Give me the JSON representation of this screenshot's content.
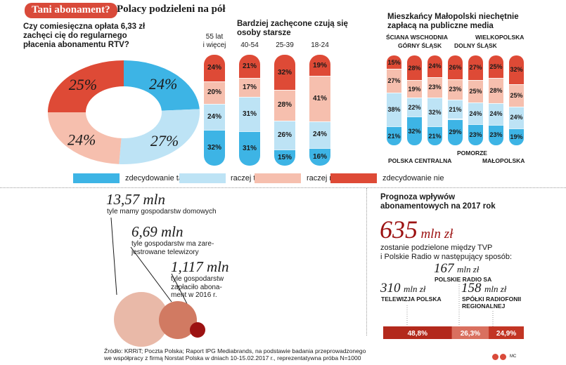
{
  "header": {
    "badge": "Tani abonament?",
    "title": "Polacy podzieleni na pół"
  },
  "colors": {
    "tak": "#3db4e5",
    "raczej_tak": "#bde3f5",
    "raczej_nie": "#f6bfae",
    "nie": "#de4a36",
    "dark_red": "#9c1212",
    "bubble1": "#e9b9a8",
    "bubble2": "#d17a62",
    "bubble3": "#9c1212",
    "bar_bg": "#c23524"
  },
  "legend": [
    {
      "key": "tak",
      "label": "zdecydowanie tak"
    },
    {
      "key": "raczej_tak",
      "label": "raczej tak"
    },
    {
      "key": "raczej_nie",
      "label": "raczej nie"
    },
    {
      "key": "nie",
      "label": "zdecydowanie nie"
    }
  ],
  "chart_data": [
    {
      "type": "pie",
      "title": "Czy comiesięczna opłata 6,33 zł zachęci cię do regularnego płacenia abonamentu RTV?",
      "categories": [
        "zdecydowanie tak",
        "raczej tak",
        "raczej nie",
        "zdecydowanie nie"
      ],
      "values": [
        24,
        27,
        24,
        25
      ],
      "labels": [
        "24%",
        "27%",
        "24%",
        "25%"
      ]
    },
    {
      "type": "bar",
      "stacked": true,
      "title": "Bardziej zachęcone czują się osoby starsze",
      "categories": [
        "55 lat i więcej",
        "40-54",
        "25-39",
        "18-24"
      ],
      "series": [
        {
          "name": "zdecydowanie tak",
          "values": [
            32,
            31,
            15,
            16
          ]
        },
        {
          "name": "raczej tak",
          "values": [
            24,
            31,
            26,
            24
          ]
        },
        {
          "name": "raczej nie",
          "values": [
            20,
            17,
            28,
            41
          ]
        },
        {
          "name": "zdecydowanie nie",
          "values": [
            24,
            21,
            32,
            19
          ]
        }
      ]
    },
    {
      "type": "bar",
      "stacked": true,
      "title": "Mieszkańcy Małopolski niechętnie zapłacą na publiczne media",
      "categories": [
        "POLSKA CENTRALNA",
        "ŚCIANA WSCHODNIA",
        "GÓRNY ŚLĄSK",
        "DOLNY ŚLĄSK",
        "POMORZE",
        "WIELKOPOLSKA",
        "MAŁOPOLSKA"
      ],
      "series": [
        {
          "name": "zdecydowanie tak",
          "values": [
            21,
            32,
            21,
            29,
            23,
            23,
            19
          ]
        },
        {
          "name": "raczej tak",
          "values": [
            38,
            22,
            32,
            21,
            24,
            24,
            24
          ]
        },
        {
          "name": "raczej nie",
          "values": [
            27,
            19,
            23,
            23,
            25,
            28,
            25
          ]
        },
        {
          "name": "zdecydowanie nie",
          "values": [
            15,
            28,
            24,
            26,
            27,
            25,
            32
          ]
        }
      ]
    },
    {
      "type": "bar",
      "stacked": true,
      "title": "Prognoza wpływów abonamentowych na 2017 rok",
      "categories": [
        "TELEWIZJA POLSKA",
        "POLSKIE RADIO SA",
        "SPÓŁKI RADIOFONII REGIONALNEJ"
      ],
      "values": [
        48.8,
        26.3,
        24.9
      ],
      "labels": [
        "48,8%",
        "26,3%",
        "24,9%"
      ]
    }
  ],
  "pie_question": [
    "Czy comiesięczna opłata 6,33 zł",
    "zachęci cię do regularnego",
    "płacenia abonamentu RTV?"
  ],
  "age_title": [
    "Bardziej zachęcone czują się",
    "osoby starsze"
  ],
  "age_heads": [
    [
      "55 lat",
      "i więcej"
    ],
    [
      "40-54",
      ""
    ],
    [
      "25-39",
      ""
    ],
    [
      "18-24",
      ""
    ]
  ],
  "region_title": [
    "Mieszkańcy Małopolski niechętnie",
    "zapłacą na publiczne media"
  ],
  "region_labels": {
    "sciana": "ŚCIANA WSCHODNIA",
    "gorny": "GÓRNY ŚLĄSK",
    "wielko": "WIELKOPOLSKA",
    "dolny": "DOLNY ŚLĄSK",
    "centralna": "POLSKA CENTRALNA",
    "pomorze": "POMORZE",
    "malopolska": "MAŁOPOLSKA"
  },
  "households": {
    "v1": "13,57 mln",
    "t1": "tyle mamy gospodarstw domowych",
    "v2": "6,69 mln",
    "t2a": "tyle gospodarstw ma zare-",
    "t2b": "jestrowane telewizory",
    "v3": "1,117 mln",
    "t3a": "tyle gospodarstw",
    "t3b": "zapłaciło abona-",
    "t3c": "ment w 2016 r."
  },
  "forecast": {
    "title1": "Prognoza wpływów",
    "title2": "abonamentowych na 2017 rok",
    "total_num": "635",
    "total_unit": "mln zł",
    "desc1": "zostanie podzielone między TVP",
    "desc2": "i Polskie Radio w następujący sposób:",
    "pr_num": "167",
    "pr_unit": "mln zł",
    "pr_name": "POLSKIE RADIO SA",
    "tvp_num": "310",
    "tvp_unit": "mln zł",
    "tvp_name": "TELEWIZJA POLSKA",
    "reg_num": "158",
    "reg_unit": "mln zł",
    "reg_name1": "SPÓŁKI RADIOFONII",
    "reg_name2": "REGIONALNEJ"
  },
  "source1": "Źródło: KRRiT; Poczta Polska; Raport IPG Mediabrands, na podstawie badania przeprowadzonego",
  "source2": "we współpracy z firmą Norstat Polska w dniach 10-15.02.2017 r., reprezentatywna próba N=1000",
  "credit": "MC"
}
